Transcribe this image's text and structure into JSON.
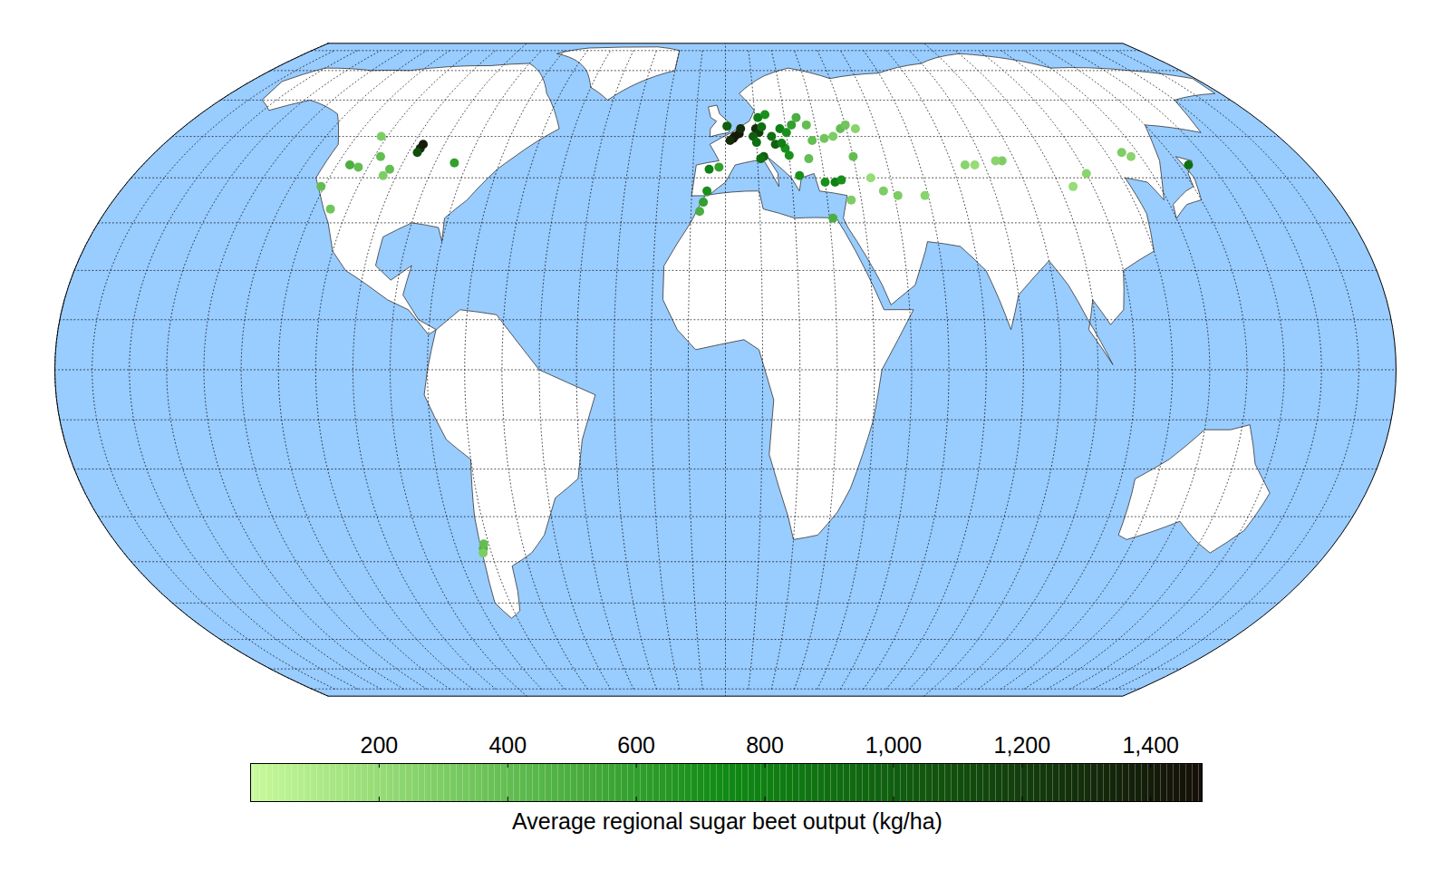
{
  "chart_data": {
    "type": "map",
    "grid": true,
    "regions": {
      "lon": [
        -97,
        -96.8,
        -97.2,
        -84,
        -116,
        -113,
        -108,
        -103,
        -104,
        -121,
        -115,
        -112,
        -72,
        -72.5,
        -71.5,
        2.5,
        3,
        1.5,
        4.5,
        5,
        10,
        11,
        9,
        12,
        0.5,
        11,
        13.5,
        18,
        20,
        22,
        15,
        16,
        19,
        18,
        12,
        11,
        -5,
        -5.5,
        -2,
        -6.5,
        -7.5,
        33,
        35,
        30,
        22.5,
        20,
        26,
        28,
        32,
        35,
        38,
        40,
        43,
        40,
        27,
        24,
        31,
        51,
        47,
        59,
        74,
        77,
        86,
        84,
        110,
        104,
        125,
        127,
        143,
        37,
        44,
        10
      ],
      "lat": [
        47,
        48,
        46,
        43.5,
        43,
        42.5,
        45,
        42,
        40.5,
        38,
        33,
        50,
        -37,
        -38,
        -36,
        49.5,
        50,
        49,
        50.7,
        52,
        52,
        51,
        50,
        52.5,
        52.7,
        55,
        55.8,
        52,
        51,
        53,
        50,
        48,
        47,
        48.3,
        45,
        44.5,
        42,
        37,
        42.5,
        34.5,
        32.5,
        39,
        39.5,
        39,
        40.5,
        45.3,
        44.5,
        49,
        49.5,
        50,
        52,
        53,
        52,
        45,
        53,
        55,
        31,
        36,
        37,
        36,
        43,
        43,
        44,
        44,
        41,
        38,
        46,
        45,
        43,
        35,
        40,
        48.5
      ],
      "values": [
        1300,
        1400,
        1100,
        600,
        500,
        400,
        400,
        400,
        300,
        400,
        350,
        300,
        500,
        300,
        400,
        1450,
        1400,
        1300,
        1400,
        1300,
        1300,
        1200,
        1000,
        900,
        1000,
        800,
        700,
        800,
        700,
        600,
        900,
        1000,
        700,
        800,
        1000,
        900,
        800,
        700,
        600,
        600,
        500,
        800,
        700,
        700,
        700,
        700,
        400,
        400,
        350,
        300,
        400,
        350,
        250,
        400,
        400,
        500,
        500,
        300,
        300,
        250,
        250,
        200,
        300,
        250,
        250,
        200,
        300,
        250,
        900,
        300,
        200,
        900
      ]
    },
    "colorbar": {
      "label": "Average regional sugar beet output (kg/ha)",
      "range": [
        0,
        1480
      ],
      "ticks": [
        200,
        400,
        600,
        800,
        1000,
        1200,
        1400
      ]
    }
  }
}
